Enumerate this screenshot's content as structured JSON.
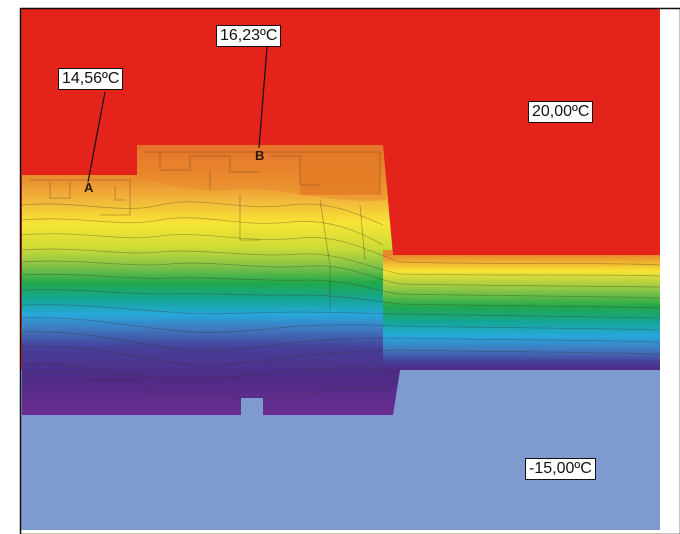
{
  "annotations": {
    "point_a_temp": "14,56ºC",
    "point_b_temp": "16,23ºC",
    "interior_temp": "20,00ºC",
    "exterior_temp": "-15,00ºC",
    "point_a_letter": "A",
    "point_b_letter": "B"
  },
  "colors": {
    "interior": "#e4231b",
    "exterior": "#7f9acf",
    "gradient": [
      "#e9892c",
      "#f1b43b",
      "#f7e435",
      "#d0dc36",
      "#8ec646",
      "#20a84b",
      "#15a596",
      "#27a9db",
      "#3f7bc1",
      "#463f98",
      "#4f2b86",
      "#6a2c92"
    ]
  }
}
